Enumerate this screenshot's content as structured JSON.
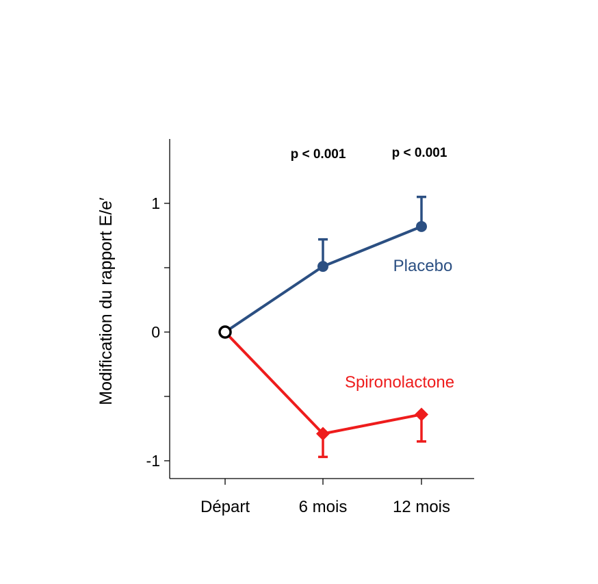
{
  "chart_data": {
    "type": "line",
    "title": "",
    "xlabel": "",
    "ylabel": "Modification du rapport E/e′",
    "categories": [
      "Départ",
      "6 mois",
      "12 mois"
    ],
    "ylim": [
      -1.15,
      1.5
    ],
    "yticks": [
      -1,
      -0.5,
      0,
      0.5,
      1
    ],
    "ytick_labels": [
      "-1",
      "",
      "0",
      "",
      "1"
    ],
    "grid": false,
    "series": [
      {
        "name": "Placebo",
        "color": "#2b4f82",
        "values": [
          0,
          0.51,
          0.82
        ],
        "error_upper": [
          null,
          0.72,
          1.05
        ],
        "error_direction": "up",
        "marker": "circle"
      },
      {
        "name": "Spironolactone",
        "color": "#ee1c1c",
        "values": [
          0,
          -0.79,
          -0.64
        ],
        "error_lower": [
          null,
          -0.97,
          -0.85
        ],
        "error_direction": "down",
        "marker": "diamond"
      }
    ],
    "annotations": [
      "p < 0.001",
      "p < 0.001"
    ]
  }
}
